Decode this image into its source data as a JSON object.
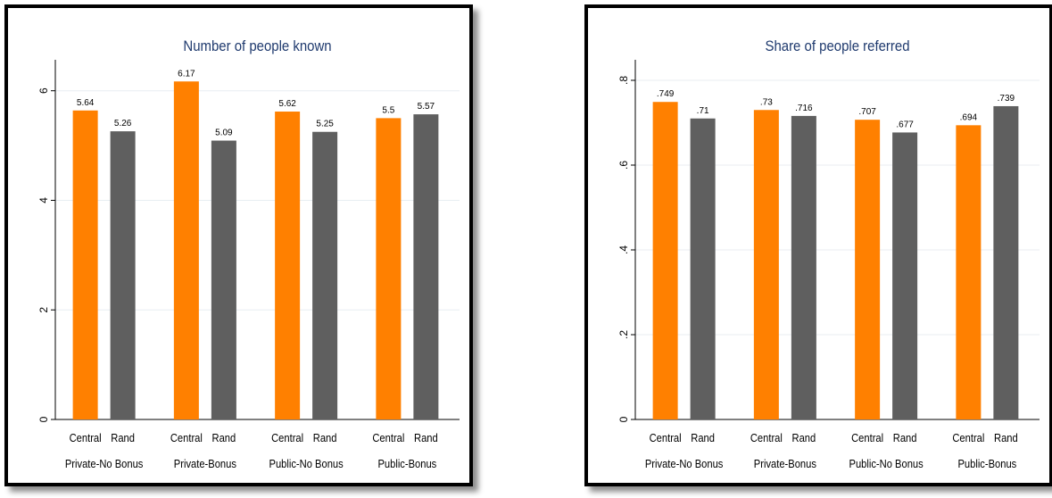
{
  "colors": {
    "central": "#ff8000",
    "rand": "#5f5f5f",
    "title": "#1f3a6e",
    "grid": "#e8eef2",
    "axis": "#000000"
  },
  "chart_data": [
    {
      "type": "bar",
      "title": "Number of people known",
      "xlabel": "",
      "ylabel": "",
      "ylim": [
        0,
        6.5
      ],
      "yticks": [
        0,
        2,
        4,
        6
      ],
      "ytick_labels": [
        "0",
        "2",
        "4",
        "6"
      ],
      "grid": true,
      "bar_labels": [
        "Central",
        "Rand"
      ],
      "groups": [
        "Private-No Bonus",
        "Private-Bonus",
        "Public-No Bonus",
        "Public-Bonus"
      ],
      "series": [
        {
          "values": [
            5.64,
            6.17,
            5.62,
            5.5
          ],
          "labels": [
            "5.64",
            "6.17",
            "5.62",
            "5.5"
          ]
        },
        {
          "values": [
            5.26,
            5.09,
            5.25,
            5.57
          ],
          "labels": [
            "5.26",
            "5.09",
            "5.25",
            "5.57"
          ]
        }
      ]
    },
    {
      "type": "bar",
      "title": "Share of people referred",
      "xlabel": "",
      "ylabel": "",
      "ylim": [
        0,
        0.84
      ],
      "yticks": [
        0,
        0.2,
        0.4,
        0.6,
        0.8
      ],
      "ytick_labels": [
        "0",
        ".2",
        ".4",
        ".6",
        ".8"
      ],
      "grid": true,
      "bar_labels": [
        "Central",
        "Rand"
      ],
      "groups": [
        "Private-No Bonus",
        "Private-Bonus",
        "Public-No Bonus",
        "Public-Bonus"
      ],
      "series": [
        {
          "values": [
            0.749,
            0.73,
            0.707,
            0.694
          ],
          "labels": [
            ".749",
            ".73",
            ".707",
            ".694"
          ]
        },
        {
          "values": [
            0.71,
            0.716,
            0.677,
            0.739
          ],
          "labels": [
            ".71",
            ".716",
            ".677",
            ".739"
          ]
        }
      ]
    }
  ]
}
